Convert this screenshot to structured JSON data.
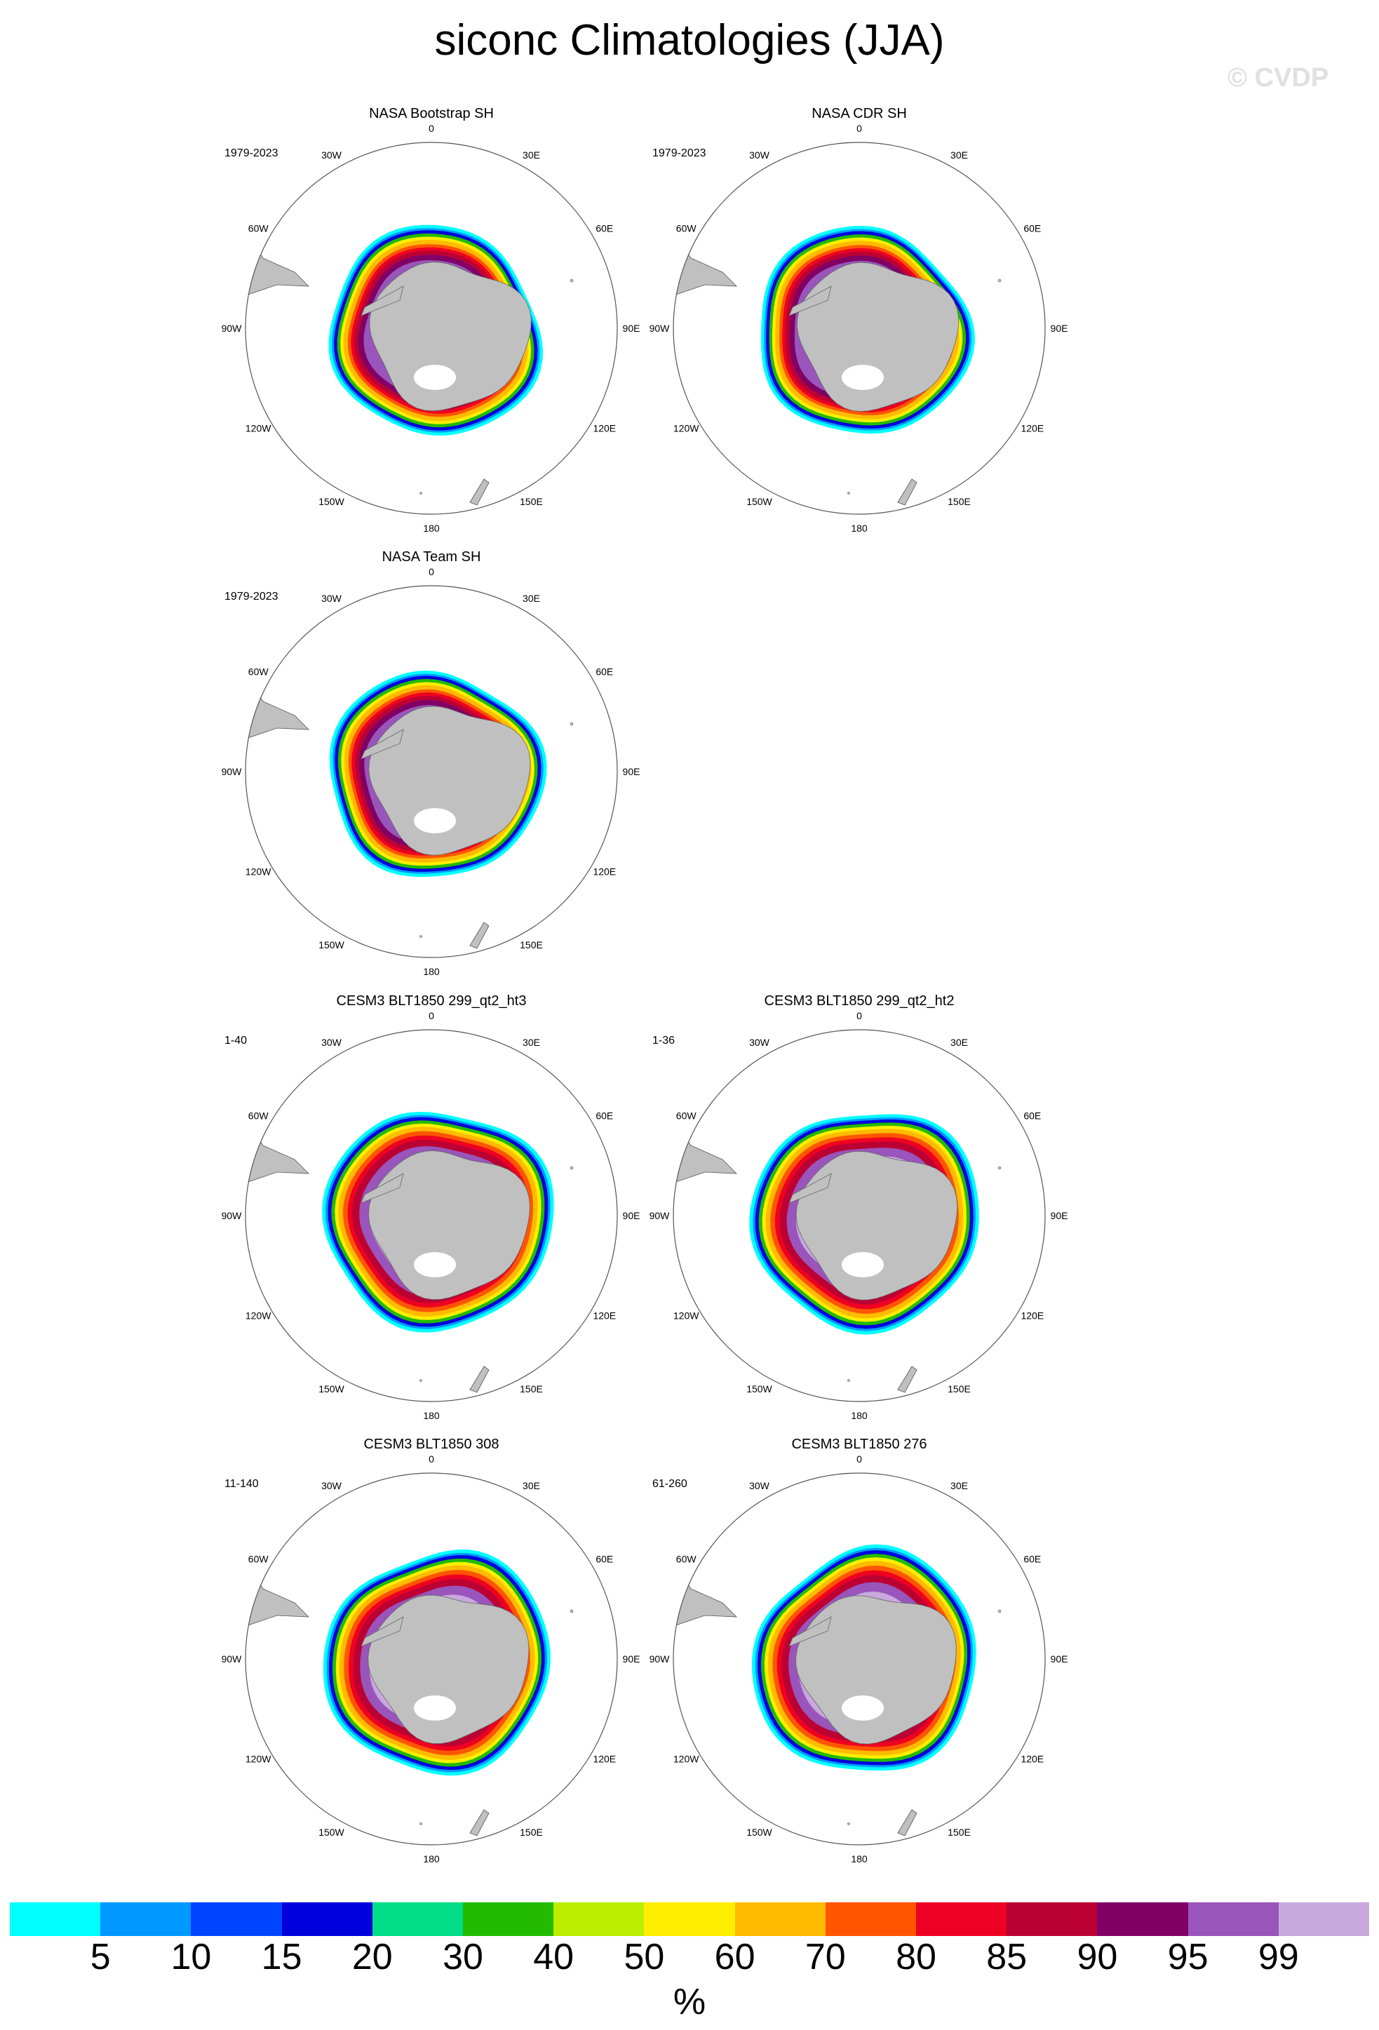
{
  "title": "siconc Climatologies (JJA)",
  "watermark": "© CVDP",
  "lon_labels": [
    "0",
    "30E",
    "60E",
    "90E",
    "120E",
    "150E",
    "180",
    "150W",
    "120W",
    "90W",
    "60W",
    "30W"
  ],
  "panels": [
    {
      "title": "NASA Bootstrap SH",
      "period": "1979-2023"
    },
    {
      "title": "NASA CDR SH",
      "period": "1979-2023"
    },
    {
      "title": "NASA Team SH",
      "period": "1979-2023"
    },
    {
      "title": "CESM3 BLT1850 299_qt2_ht3",
      "period": "1-40"
    },
    {
      "title": "CESM3 BLT1850 299_qt2_ht2",
      "period": "1-36"
    },
    {
      "title": "CESM3 BLT1850 308",
      "period": "11-140"
    },
    {
      "title": "CESM3 BLT1850 276",
      "period": "61-260"
    }
  ],
  "colorbar": {
    "colors": [
      "#00ffff",
      "#0099ff",
      "#0044ff",
      "#0000dd",
      "#00dd88",
      "#22bb00",
      "#bbee00",
      "#ffee00",
      "#ffbb00",
      "#ff5500",
      "#ee0022",
      "#bb0033",
      "#800066",
      "#9955bb",
      "#c8a8dd"
    ],
    "labels": [
      "5",
      "10",
      "15",
      "20",
      "30",
      "40",
      "50",
      "60",
      "70",
      "80",
      "85",
      "90",
      "95",
      "99"
    ],
    "units": "%"
  },
  "map_colors": {
    "land": "#c0c0c0",
    "ice_100": "#c8a8dd",
    "ice_99": "#9955bb",
    "ice_95": "#800066",
    "ice_90": "#bb0033",
    "ice_85": "#ee0022",
    "ice_80": "#ff5500",
    "ice_70": "#ffbb00",
    "ice_60": "#ffee00",
    "ice_50": "#bbee00",
    "ice_40": "#22bb00",
    "ice_20": "#0000dd",
    "ice_15": "#0044ff",
    "ice_10": "#0099ff",
    "ice_5": "#00ffff"
  }
}
